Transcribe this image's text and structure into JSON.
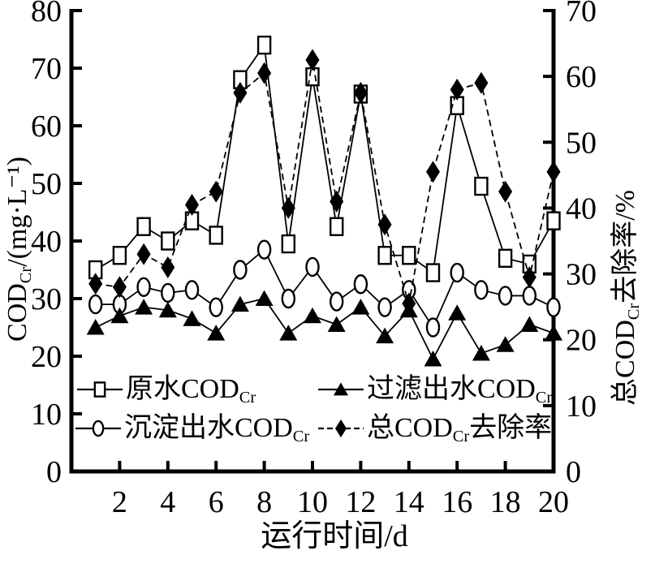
{
  "colors": {
    "ink": "#000000",
    "background": "#ffffff",
    "marker_fill_open": "#ffffff"
  },
  "chart_data": {
    "type": "line",
    "x": [
      1,
      2,
      3,
      4,
      5,
      6,
      7,
      8,
      9,
      10,
      11,
      12,
      13,
      14,
      15,
      16,
      17,
      18,
      19,
      20
    ],
    "series": [
      {
        "id": "raw-water-cod",
        "name": "原水CODCr",
        "axis": "left",
        "marker": "open-square",
        "line": "solid",
        "values": [
          35,
          37.5,
          42.5,
          40,
          43.5,
          41,
          68,
          74,
          39.5,
          68.5,
          42.5,
          65.5,
          37.5,
          37.5,
          34.5,
          63.5,
          49.5,
          37,
          36,
          43.5
        ]
      },
      {
        "id": "settled-effluent-cod",
        "name": "沉淀出水CODCr",
        "axis": "left",
        "marker": "open-circle",
        "line": "solid",
        "values": [
          29,
          29,
          32,
          31,
          31.5,
          28.5,
          35,
          38.5,
          30,
          35.5,
          29.5,
          32.5,
          28.5,
          31.5,
          25,
          34.5,
          31.5,
          30.5,
          30.5,
          28.5
        ]
      },
      {
        "id": "filtered-effluent-cod",
        "name": "过滤出水CODCr",
        "axis": "left",
        "marker": "filled-triangle",
        "line": "solid",
        "values": [
          25,
          27,
          28.5,
          28,
          26.5,
          24,
          29,
          30,
          24,
          27,
          25.5,
          28.5,
          23.5,
          28,
          19.5,
          27.5,
          20.5,
          22,
          25.5,
          24
        ]
      },
      {
        "id": "total-removal-rate",
        "name": "总CODCr去除率",
        "axis": "right",
        "marker": "filled-diamond",
        "line": "dashed",
        "values": [
          28.5,
          28,
          33,
          31,
          40.5,
          42.5,
          57.5,
          60.5,
          40,
          62.5,
          41,
          57.5,
          37.5,
          25.5,
          45.5,
          58,
          59,
          42.5,
          29.5,
          45.5
        ]
      }
    ],
    "left_axis": {
      "title_pre": "COD",
      "title_sub": "Cr",
      "title_post": "/(mg·L⁻¹)",
      "min": 0,
      "max": 80,
      "ticks": [
        0,
        10,
        20,
        30,
        40,
        50,
        60,
        70,
        80
      ]
    },
    "right_axis": {
      "title_pre": "总COD",
      "title_sub": "Cr",
      "title_post": "去除率/%",
      "min": 0,
      "max": 70,
      "ticks": [
        0,
        10,
        20,
        30,
        40,
        50,
        60,
        70
      ]
    },
    "x_axis": {
      "label": "运行时间/d",
      "min": 0,
      "max": 20,
      "ticks": [
        2,
        4,
        6,
        8,
        10,
        12,
        14,
        16,
        18,
        20
      ]
    },
    "grid": false,
    "legend_position": "inside-bottom-left"
  },
  "legend": {
    "items": [
      {
        "pre": "原水COD",
        "sub": "Cr",
        "post": "",
        "marker": "open-square",
        "series_index": 0
      },
      {
        "pre": "过滤出水COD",
        "sub": "Cr",
        "post": "",
        "marker": "filled-triangle",
        "series_index": 2
      },
      {
        "pre": "沉淀出水COD",
        "sub": "Cr",
        "post": "",
        "marker": "open-circle",
        "series_index": 1
      },
      {
        "pre": "总COD",
        "sub": "Cr",
        "post": "去除率",
        "marker": "filled-diamond",
        "series_index": 3
      }
    ]
  }
}
